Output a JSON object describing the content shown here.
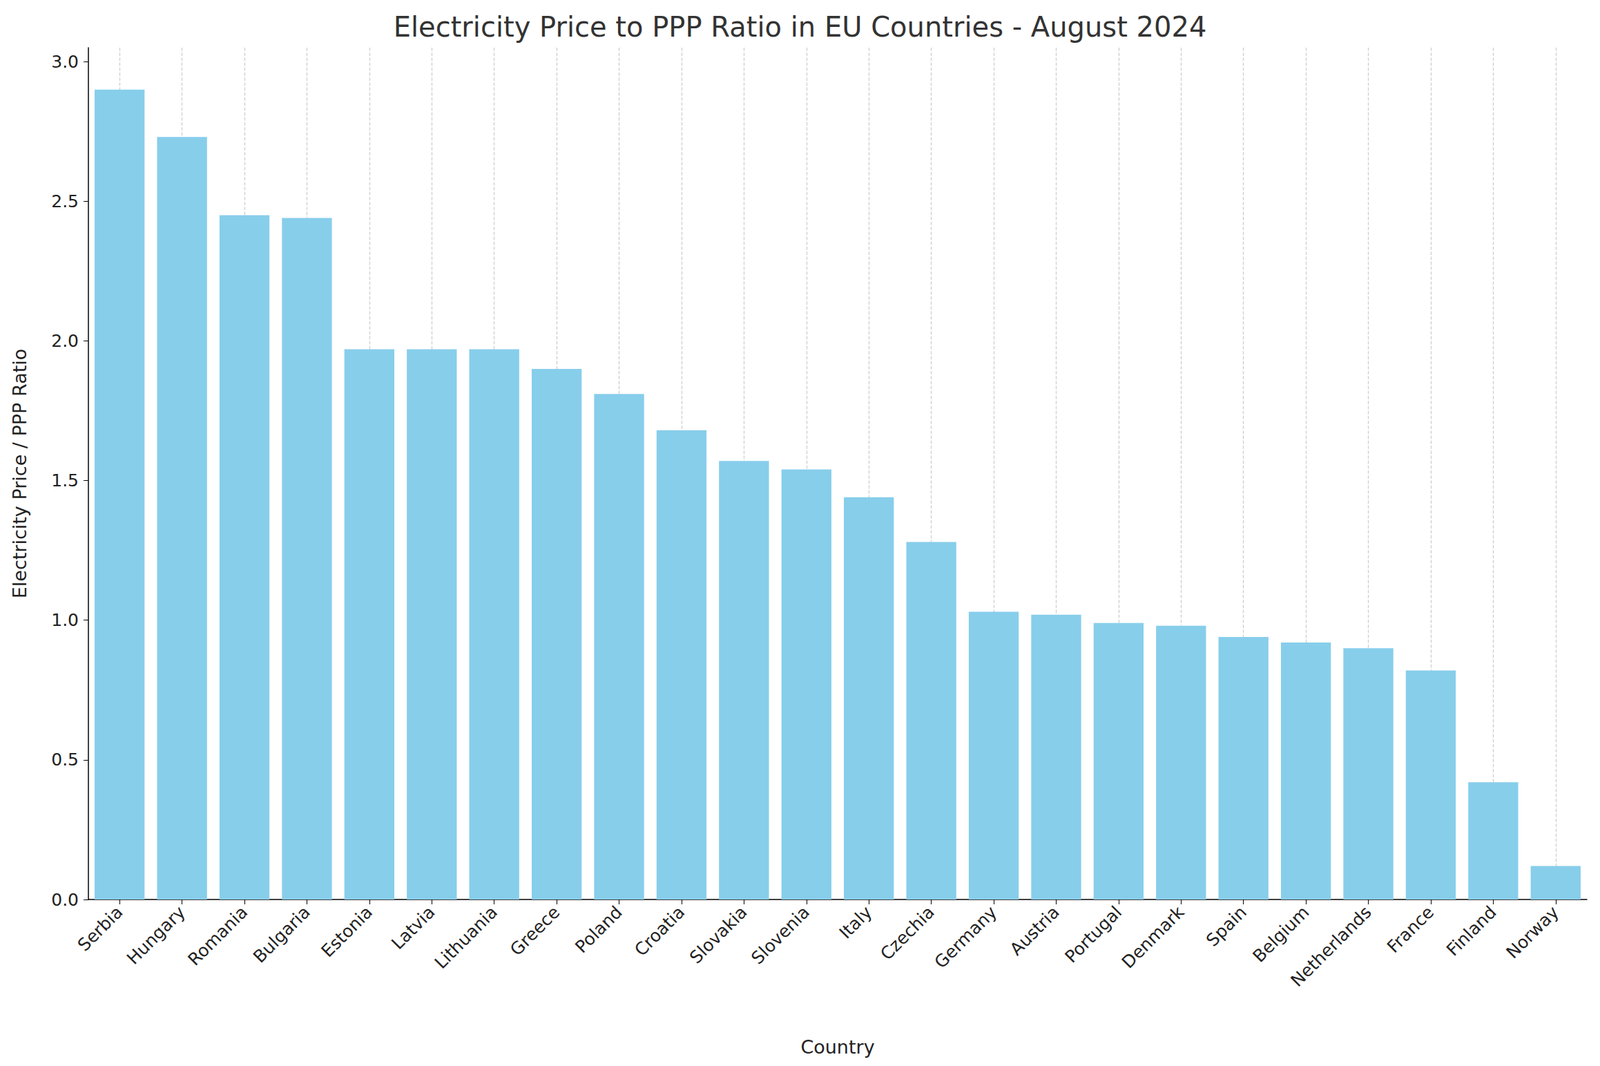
{
  "chart_data": {
    "type": "bar",
    "title": "Electricity Price to PPP Ratio in EU Countries - August 2024",
    "x_label": "Country",
    "y_label": "Electricity Price / PPP Ratio",
    "categories": [
      "Serbia",
      "Hungary",
      "Romania",
      "Bulgaria",
      "Estonia",
      "Latvia",
      "Lithuania",
      "Greece",
      "Poland",
      "Croatia",
      "Slovakia",
      "Slovenia",
      "Italy",
      "Czechia",
      "Germany",
      "Austria",
      "Portugal",
      "Denmark",
      "Spain",
      "Belgium",
      "Netherlands",
      "France",
      "Finland",
      "Norway"
    ],
    "values": [
      2.9,
      2.73,
      2.45,
      2.44,
      1.97,
      1.97,
      1.97,
      1.9,
      1.81,
      1.68,
      1.57,
      1.54,
      1.44,
      1.28,
      1.03,
      1.02,
      0.99,
      0.98,
      0.94,
      0.92,
      0.9,
      0.82,
      0.42,
      0.12
    ],
    "color": "#87ceeb",
    "ylim": [
      0,
      3.05
    ],
    "yticks": [
      {
        "value": 0,
        "label": "0.0"
      },
      {
        "value": 0.5,
        "label": "0.5"
      },
      {
        "value": 1,
        "label": "1.0"
      },
      {
        "value": 1.5,
        "label": "1.5"
      },
      {
        "value": 2,
        "label": "2.0"
      },
      {
        "value": 2.5,
        "label": "2.5"
      },
      {
        "value": 3,
        "label": "3.0"
      }
    ],
    "grid": true
  }
}
